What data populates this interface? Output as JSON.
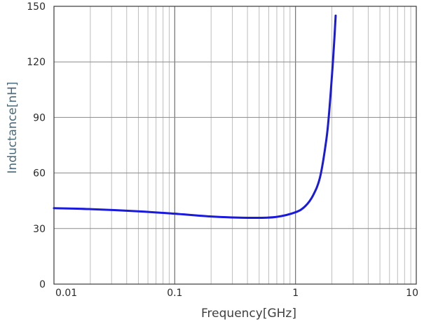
{
  "chart_data": {
    "type": "line",
    "title": "",
    "xlabel": "Frequency[GHz]",
    "ylabel": "Inductance[nH]",
    "xscale": "log",
    "xlim": [
      0.01,
      10
    ],
    "ylim": [
      0,
      150
    ],
    "x_ticks": [
      "0.01",
      "0.1",
      "1",
      "10"
    ],
    "y_ticks": [
      "0",
      "30",
      "60",
      "90",
      "120",
      "150"
    ],
    "grid": true,
    "legend": "none",
    "series": [
      {
        "color": "#1a1adc",
        "x": [
          0.01,
          0.02,
          0.05,
          0.1,
          0.2,
          0.3,
          0.5,
          0.7,
          1.0,
          1.2,
          1.4,
          1.6,
          1.8,
          1.9,
          2.0,
          2.05,
          2.1,
          2.15
        ],
        "y": [
          41,
          40.5,
          39.3,
          38,
          36.5,
          36,
          35.8,
          36.3,
          38.8,
          42,
          48,
          58,
          78,
          93,
          112,
          122,
          133,
          145
        ]
      }
    ]
  }
}
